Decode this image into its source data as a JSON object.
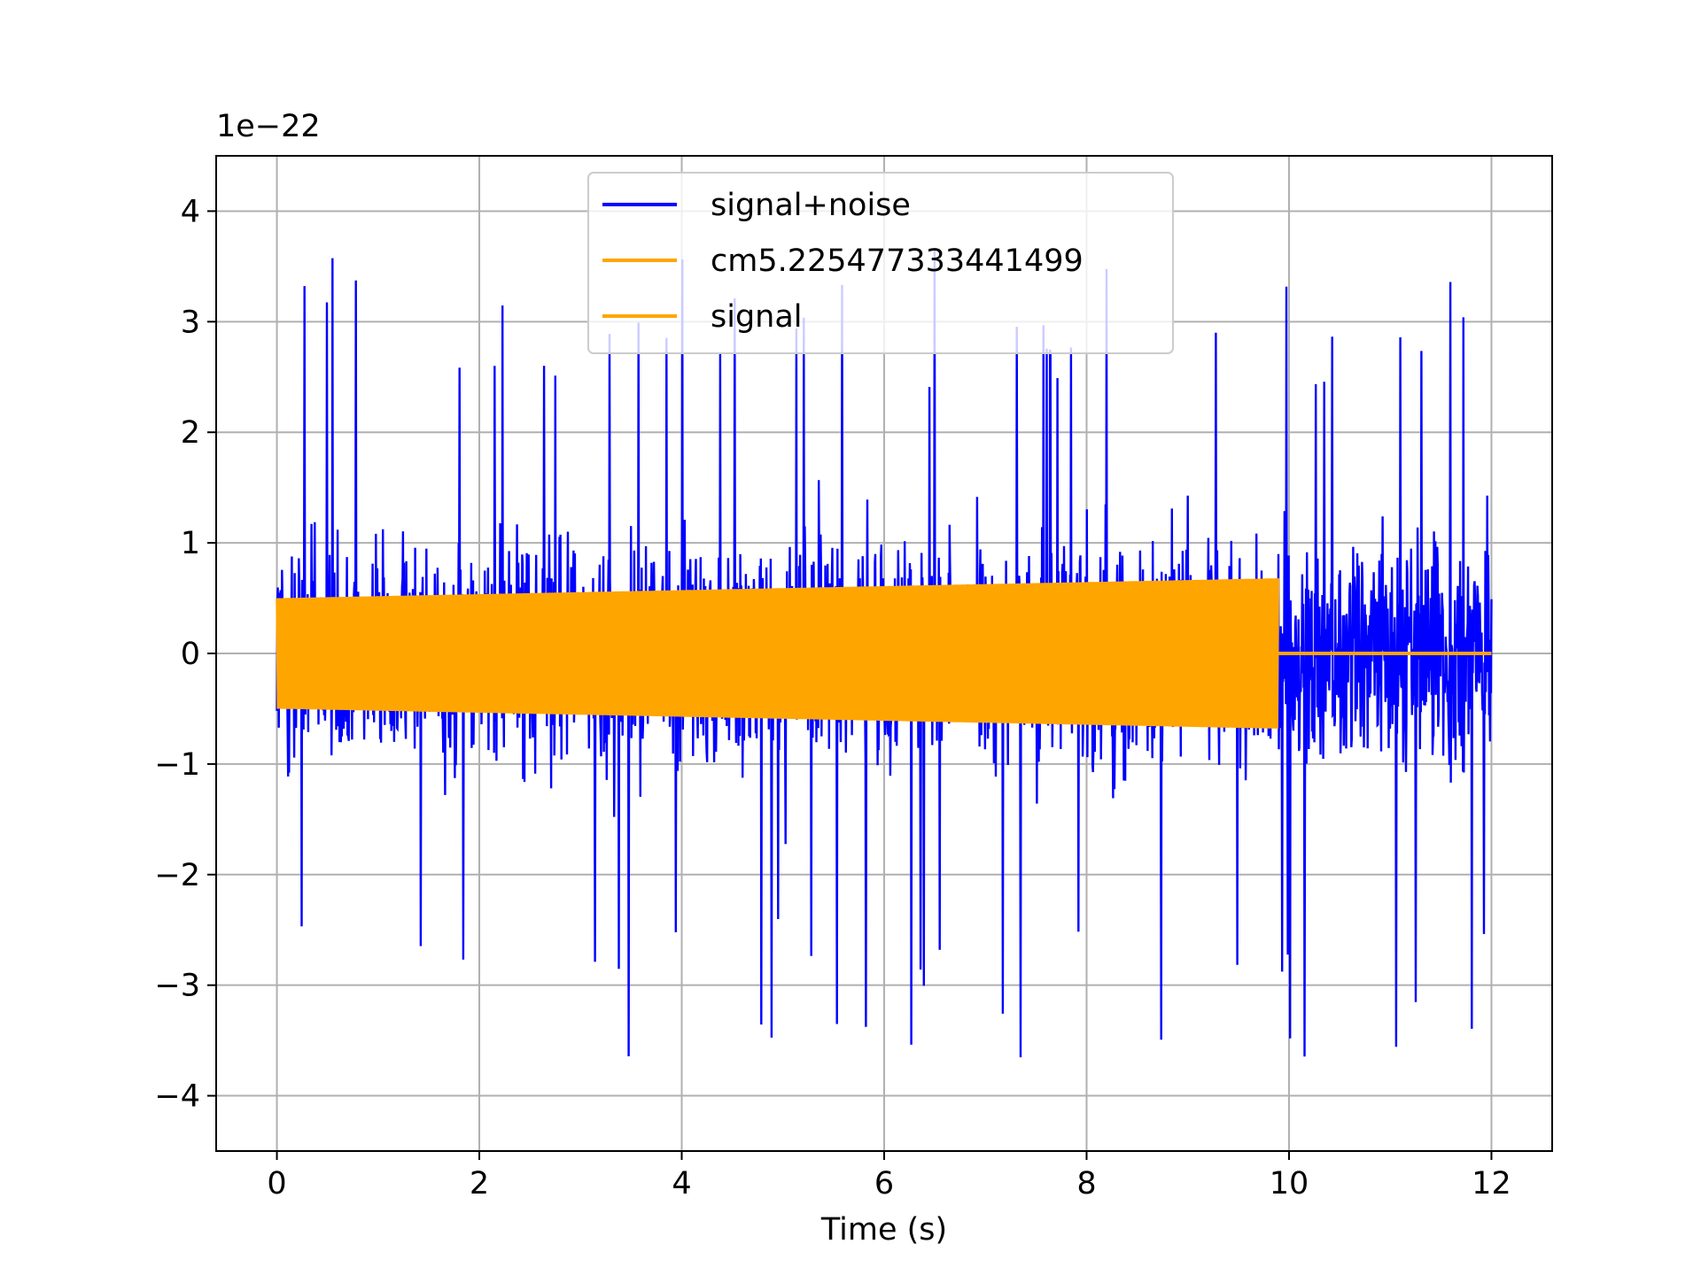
{
  "chart_data": {
    "type": "line",
    "title": "",
    "xlabel": "Time (s)",
    "ylabel": "",
    "y_offset_label": "1e−22",
    "xlim": [
      -0.6,
      12.6
    ],
    "ylim": [
      -4.5,
      4.5
    ],
    "xticks": [
      {
        "value": 0,
        "label": "0"
      },
      {
        "value": 2,
        "label": "2"
      },
      {
        "value": 4,
        "label": "4"
      },
      {
        "value": 6,
        "label": "6"
      },
      {
        "value": 8,
        "label": "8"
      },
      {
        "value": 10,
        "label": "10"
      },
      {
        "value": 12,
        "label": "12"
      }
    ],
    "yticks": [
      {
        "value": -4,
        "label": "−4"
      },
      {
        "value": -3,
        "label": "−3"
      },
      {
        "value": -2,
        "label": "−2"
      },
      {
        "value": -1,
        "label": "−1"
      },
      {
        "value": 0,
        "label": "0"
      },
      {
        "value": 1,
        "label": "1"
      },
      {
        "value": 2,
        "label": "2"
      },
      {
        "value": 3,
        "label": "3"
      },
      {
        "value": 4,
        "label": "4"
      }
    ],
    "grid": true,
    "legend_position": "upper center",
    "series": [
      {
        "name": "signal+noise",
        "color": "#0000ff",
        "x_range": [
          0,
          12
        ],
        "envelope_typical": 1.5,
        "peak_max": 3.95,
        "peak_min": -4.05
      },
      {
        "name": "cm5.225477333441499",
        "color": "#ffa500",
        "x_range": [
          0,
          9.9
        ],
        "amplitude_start": 0.5,
        "amplitude_end": 0.68
      },
      {
        "name": "signal",
        "color": "#ffa500",
        "x_range": [
          9.9,
          12
        ],
        "value": 0
      }
    ]
  }
}
